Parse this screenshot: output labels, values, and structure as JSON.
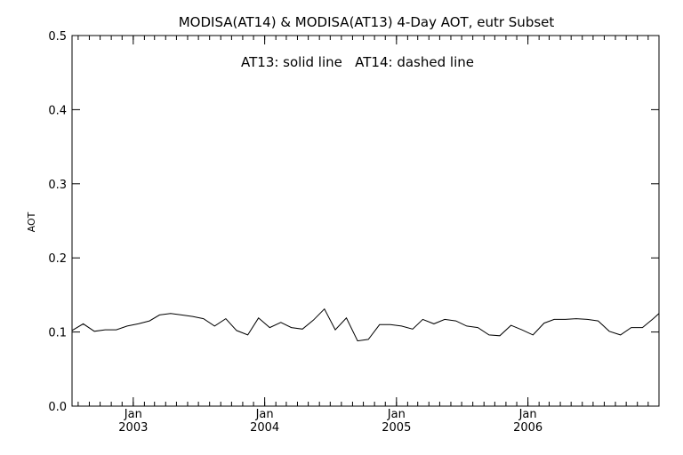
{
  "chart_data": {
    "type": "line",
    "title": "MODISA(AT14) & MODISA(AT13) 4-Day AOT, eutr Subset",
    "annotation": "AT13: solid line   AT14: dashed line",
    "xlabel": "",
    "ylabel": "AOT",
    "ylim": [
      0.0,
      0.5
    ],
    "yticks": [
      "0.0",
      "0.1",
      "0.2",
      "0.3",
      "0.4",
      "0.5"
    ],
    "xlim": [
      "2002-07-15",
      "2006-12-31"
    ],
    "xticks": [
      {
        "month": "Jan",
        "year": "2003",
        "date": "2003-01-01"
      },
      {
        "month": "Jan",
        "year": "2004",
        "date": "2004-01-01"
      },
      {
        "month": "Jan",
        "year": "2005",
        "date": "2005-01-01"
      },
      {
        "month": "Jan",
        "year": "2006",
        "date": "2006-01-01"
      }
    ],
    "grid": false,
    "series": [
      {
        "style": "solid",
        "color": "#000000",
        "points": [
          [
            "2002-07-15",
            0.102
          ],
          [
            "2002-08-15",
            0.111
          ],
          [
            "2002-09-15",
            0.101
          ],
          [
            "2002-10-15",
            0.103
          ],
          [
            "2002-11-15",
            0.103
          ],
          [
            "2002-12-15",
            0.108
          ],
          [
            "2003-01-15",
            0.111
          ],
          [
            "2003-02-15",
            0.115
          ],
          [
            "2003-03-15",
            0.123
          ],
          [
            "2003-04-15",
            0.125
          ],
          [
            "2003-05-15",
            0.123
          ],
          [
            "2003-06-15",
            0.121
          ],
          [
            "2003-07-15",
            0.118
          ],
          [
            "2003-08-15",
            0.108
          ],
          [
            "2003-09-15",
            0.118
          ],
          [
            "2003-10-15",
            0.102
          ],
          [
            "2003-11-15",
            0.096
          ],
          [
            "2003-12-15",
            0.119
          ],
          [
            "2004-01-15",
            0.106
          ],
          [
            "2004-02-15",
            0.113
          ],
          [
            "2004-03-15",
            0.106
          ],
          [
            "2004-04-15",
            0.104
          ],
          [
            "2004-05-15",
            0.116
          ],
          [
            "2004-06-15",
            0.131
          ],
          [
            "2004-07-15",
            0.103
          ],
          [
            "2004-08-15",
            0.119
          ],
          [
            "2004-09-15",
            0.088
          ],
          [
            "2004-10-15",
            0.09
          ],
          [
            "2004-11-15",
            0.11
          ],
          [
            "2004-12-15",
            0.11
          ],
          [
            "2005-01-15",
            0.108
          ],
          [
            "2005-02-15",
            0.104
          ],
          [
            "2005-03-15",
            0.117
          ],
          [
            "2005-04-15",
            0.111
          ],
          [
            "2005-05-15",
            0.117
          ],
          [
            "2005-06-15",
            0.115
          ],
          [
            "2005-07-15",
            0.108
          ],
          [
            "2005-08-15",
            0.106
          ],
          [
            "2005-09-15",
            0.096
          ],
          [
            "2005-10-15",
            0.095
          ],
          [
            "2005-11-15",
            0.109
          ],
          [
            "2005-12-15",
            0.103
          ],
          [
            "2006-01-15",
            0.096
          ],
          [
            "2006-02-15",
            0.112
          ],
          [
            "2006-03-15",
            0.117
          ],
          [
            "2006-04-15",
            0.117
          ],
          [
            "2006-05-15",
            0.118
          ],
          [
            "2006-06-15",
            0.117
          ],
          [
            "2006-07-15",
            0.115
          ],
          [
            "2006-08-15",
            0.101
          ],
          [
            "2006-09-15",
            0.096
          ],
          [
            "2006-10-15",
            0.106
          ],
          [
            "2006-11-15",
            0.106
          ],
          [
            "2006-12-15",
            0.118
          ],
          [
            "2006-12-31",
            0.125
          ]
        ]
      }
    ]
  }
}
